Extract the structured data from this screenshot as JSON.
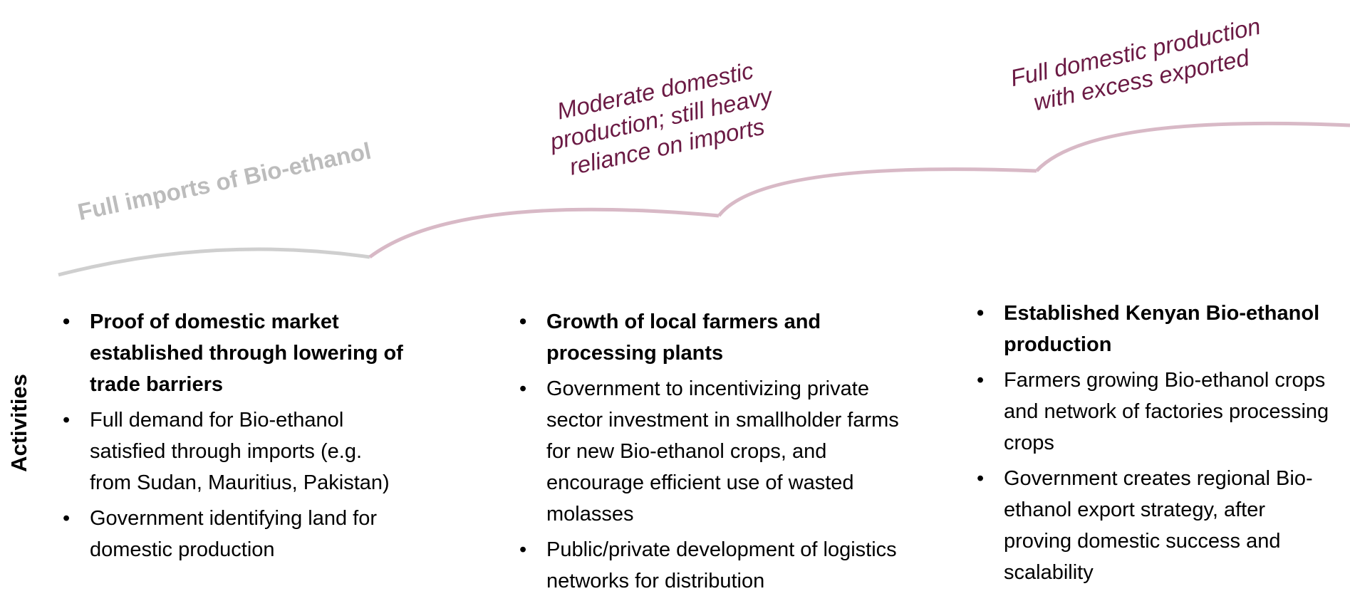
{
  "stages": [
    {
      "lines": [
        "Full imports of Bio-ethanol"
      ]
    },
    {
      "lines": [
        "Moderate domestic",
        "production; still heavy",
        "reliance on imports"
      ]
    },
    {
      "lines": [
        "Full domestic production",
        "with excess exported"
      ]
    }
  ],
  "side_label": "Activities",
  "columns": [
    {
      "items": [
        {
          "text": "Proof of domestic market established through lowering of trade barriers",
          "bold": true
        },
        {
          "text": "Full demand for Bio-ethanol satisfied through imports (e.g. from Sudan, Mauritius, Pakistan)",
          "bold": false
        },
        {
          "text": "Government identifying land for domestic production",
          "bold": false
        }
      ]
    },
    {
      "items": [
        {
          "text": "Growth of local farmers and processing plants",
          "bold": true
        },
        {
          "text": "Government to incentivizing private sector investment in smallholder farms for new Bio-ethanol crops, and encourage efficient use of wasted molasses",
          "bold": false
        },
        {
          "text": "Public/private development of logistics networks for distribution",
          "bold": false
        }
      ]
    },
    {
      "items": [
        {
          "text": "Established Kenyan Bio-ethanol production",
          "bold": true
        },
        {
          "text": "Farmers growing Bio-ethanol crops and network of factories processing crops",
          "bold": false
        },
        {
          "text": "Government creates regional Bio-ethanol export strategy, after proving domestic success and scalability",
          "bold": false
        }
      ]
    }
  ]
}
